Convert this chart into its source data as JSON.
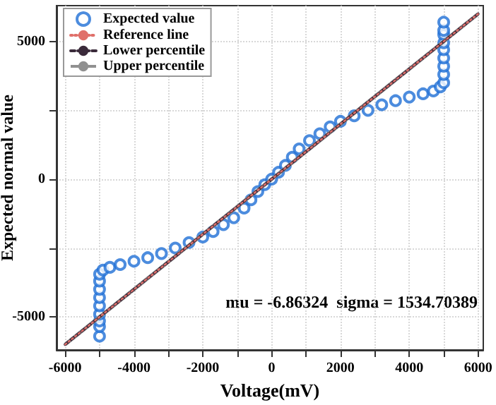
{
  "chart_data": {
    "type": "scatter",
    "xlabel": "Voltage(mV)",
    "ylabel": "Expected normal value",
    "xlim": [
      -6250,
      6150
    ],
    "ylim": [
      -6200,
      6300
    ],
    "xticks": [
      -6000,
      {
        "value": -5000,
        "label": null
      },
      -4000,
      {
        "value": -3000,
        "label": null
      },
      -2000,
      {
        "value": -1000,
        "label": null
      },
      0,
      {
        "value": 1000,
        "label": null
      },
      2000,
      {
        "value": 3000,
        "label": null
      },
      4000,
      {
        "value": 5000,
        "label": null
      },
      6000
    ],
    "yticks": [
      -5000,
      {
        "value": -2500,
        "label": null
      },
      0,
      {
        "value": 2500,
        "label": null
      },
      5000
    ],
    "grid": true,
    "legend": "top left",
    "annotations": [
      "mu = -6.86324  sigma = 1534.70389"
    ],
    "series": [
      {
        "name": "Expected value",
        "marker": "circle",
        "color": "#1f6fd6",
        "x": [
          -5000,
          -5000,
          -5000,
          -5000,
          -5000,
          -5000,
          -5000,
          -5000,
          -5000,
          -4900,
          -4700,
          -4400,
          -4000,
          -3600,
          -3200,
          -2800,
          -2400,
          -2000,
          -1700,
          -1400,
          -1100,
          -800,
          -600,
          -400,
          -200,
          0,
          200,
          400,
          600,
          800,
          1100,
          1400,
          1700,
          2000,
          2400,
          2800,
          3200,
          3600,
          4000,
          4400,
          4700,
          4900,
          5000,
          5000,
          5000,
          5000,
          5000,
          5000,
          5000,
          5000,
          5000
        ],
        "values": [
          -5700,
          -5350,
          -5150,
          -4900,
          -4600,
          -4300,
          -4000,
          -3700,
          -3450,
          -3300,
          -3200,
          -3100,
          -2980,
          -2850,
          -2700,
          -2500,
          -2300,
          -2100,
          -1900,
          -1650,
          -1400,
          -1050,
          -750,
          -450,
          -200,
          0,
          250,
          500,
          800,
          1100,
          1400,
          1650,
          1900,
          2100,
          2300,
          2500,
          2700,
          2850,
          2980,
          3100,
          3200,
          3350,
          3500,
          3800,
          4100,
          4400,
          4700,
          4950,
          5250,
          5400,
          5700
        ]
      },
      {
        "name": "Reference line",
        "type": "line",
        "marker": "none",
        "line_style": "dotted",
        "color": "#e0706a",
        "x": [
          -6000,
          6000
        ],
        "values": [
          -6000,
          6000
        ]
      },
      {
        "name": "Lower percentile",
        "type": "line",
        "marker": "none",
        "line_style": "dashed",
        "color": "#3a2a3a",
        "x": [
          -6000,
          6000
        ],
        "values": [
          -6000,
          6000
        ]
      },
      {
        "name": "Upper percentile",
        "type": "line",
        "marker": "none",
        "line_style": "solid",
        "color": "#909090",
        "x": [
          -6000,
          6000
        ],
        "values": [
          -6000,
          6000
        ]
      }
    ]
  }
}
